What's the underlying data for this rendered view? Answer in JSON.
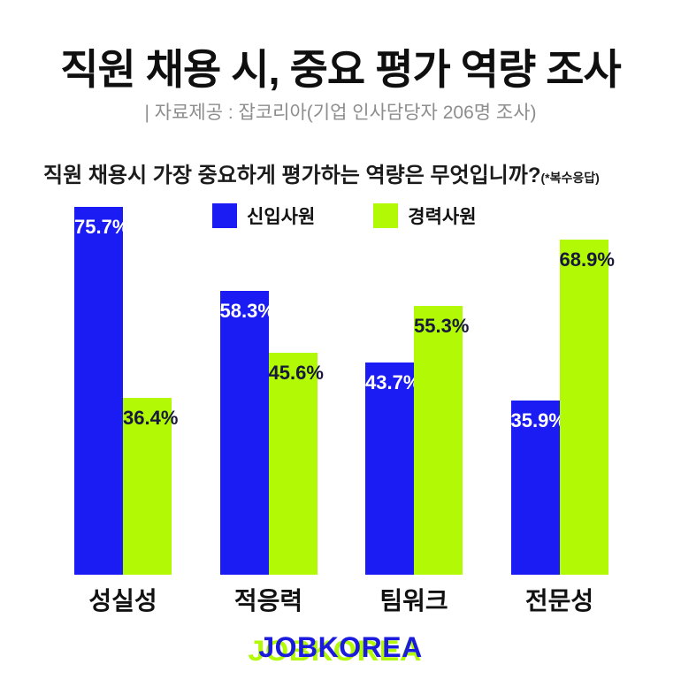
{
  "page": {
    "background": "#FFFFFF"
  },
  "header": {
    "title": "직원 채용 시, 중요 평가 역량 조사",
    "subtitle": "| 자료제공 : 잡코리아(기업 인사담당자 206명 조사)"
  },
  "question": {
    "text": "직원 채용시 가장 중요하게 평가하는 역량은 무엇입니까?",
    "note": "(*복수응답)"
  },
  "chart_data": {
    "type": "bar",
    "title": "직원 채용시 가장 중요하게 평가하는 역량은 무엇입니까?(*복수응답)",
    "categories": [
      "성실성",
      "적응력",
      "팀워크",
      "전문성"
    ],
    "series": [
      {
        "name": "신입사원",
        "color": "#1B1BF4",
        "label_color": "#FFFFFF",
        "values": [
          75.7,
          58.3,
          43.7,
          35.9
        ]
      },
      {
        "name": "경력사원",
        "color": "#B1F904",
        "label_color": "#18183C",
        "values": [
          36.4,
          45.6,
          55.3,
          68.9
        ]
      }
    ],
    "value_suffix": "%",
    "ylim": [
      0,
      80
    ],
    "grid": false,
    "legend_position": "top"
  },
  "footer": {
    "logo_text": "JOBKOREA",
    "logo_color": "#1B1BDE",
    "logo_accent_color": "#B1F904"
  }
}
